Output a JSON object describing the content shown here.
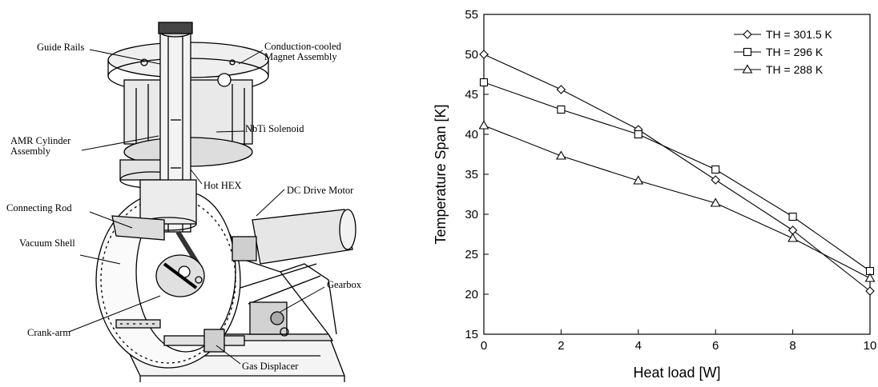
{
  "diagram": {
    "labels": {
      "guide_rails": "Guide Rails",
      "magnet_line1": "Conduction-cooled",
      "magnet_line2": "Magnet Assembly",
      "nbti": "NbTi Solenoid",
      "amr_line1": "AMR Cylinder",
      "amr_line2": "Assembly",
      "hot_hex": "Hot HEX",
      "dc_motor": "DC Drive Motor",
      "connecting_rod": "Connecting Rod",
      "vacuum_shell": "Vacuum Shell",
      "gearbox": "Gearbox",
      "crank_arm": "Crank-arm",
      "gas_displacer": "Gas Displacer"
    }
  },
  "chart_data": {
    "type": "line",
    "x": [
      0,
      2,
      4,
      6,
      8,
      10
    ],
    "xlabel": "Heat load [W]",
    "ylabel": "Temperature Span [K]",
    "xlim": [
      0,
      10
    ],
    "ylim": [
      15,
      55
    ],
    "xticks": [
      0,
      2,
      4,
      6,
      8,
      10
    ],
    "yticks": [
      15,
      20,
      25,
      30,
      35,
      40,
      45,
      50,
      55
    ],
    "grid": false,
    "legend_position": "top-right",
    "series": [
      {
        "name": "TH = 301.5 K",
        "marker": "diamond",
        "values": [
          50.0,
          45.6,
          40.6,
          34.3,
          28.0,
          20.4
        ]
      },
      {
        "name": "TH = 296 K",
        "marker": "square",
        "values": [
          46.5,
          43.1,
          40.0,
          35.6,
          29.7,
          22.9
        ]
      },
      {
        "name": "TH = 288 K",
        "marker": "triangle",
        "values": [
          41.1,
          37.3,
          34.2,
          31.4,
          27.0,
          22.0
        ]
      }
    ]
  }
}
